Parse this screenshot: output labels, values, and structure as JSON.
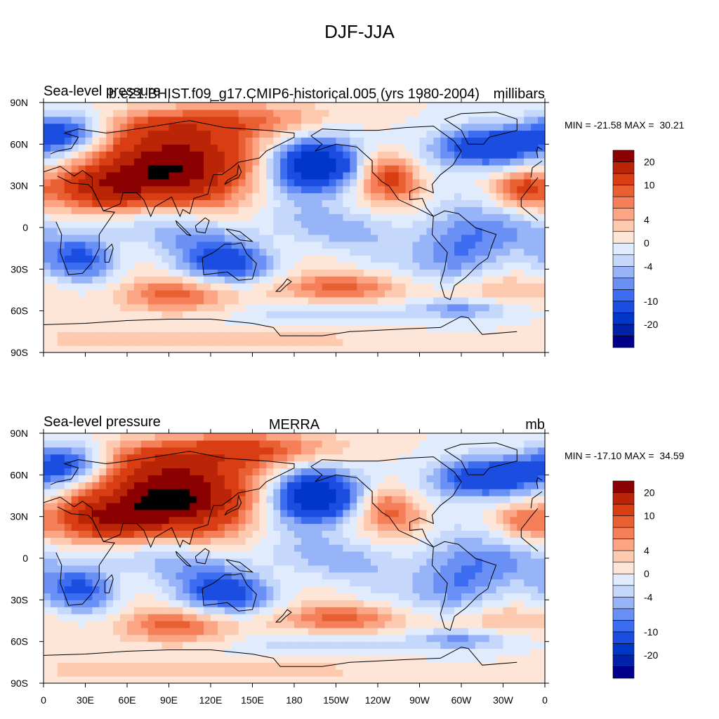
{
  "figure": {
    "title": "DJF-JJA"
  },
  "panels": [
    {
      "left_title": "Sea-level pressure",
      "center_title": "b.e21.BHIST.f09_g17.CMIP6-historical.005 (yrs 1980-2004)",
      "right_title": "millibars",
      "minmax": "MIN = -21.58 MAX =  30.21",
      "min": -21.58,
      "max": 30.21,
      "variant": 0
    },
    {
      "left_title": "Sea-level pressure",
      "center_title": "MERRA",
      "right_title": "mb",
      "minmax": "MIN = -17.10 MAX =  34.59",
      "min": -17.1,
      "max": 34.59,
      "variant": 1
    }
  ],
  "axes": {
    "x_ticks": [
      "0",
      "30E",
      "60E",
      "90E",
      "120E",
      "150E",
      "180",
      "150W",
      "120W",
      "90W",
      "60W",
      "30W",
      "0"
    ],
    "y_ticks": [
      "90N",
      "60N",
      "30N",
      "0",
      "30S",
      "60S",
      "90S"
    ]
  },
  "colorbar": {
    "levels": [
      -25,
      -20,
      -15,
      -10,
      -8,
      -6,
      -4,
      -2,
      0,
      2,
      4,
      6,
      8,
      10,
      15,
      20,
      25
    ],
    "colors": [
      "#00008b",
      "#0022a8",
      "#0037c8",
      "#1a4de0",
      "#3c6cf0",
      "#6a90f5",
      "#98b4f8",
      "#c5d8fb",
      "#e0ecfd",
      "#fde6d8",
      "#fdcab0",
      "#fba585",
      "#f57f58",
      "#e85f32",
      "#d93d13",
      "#ba2407",
      "#8b0000"
    ],
    "labels": [
      {
        "level": 20,
        "text": "20"
      },
      {
        "level": 10,
        "text": "10"
      },
      {
        "level": 4,
        "text": "4"
      },
      {
        "level": 0,
        "text": "0"
      },
      {
        "level": -4,
        "text": "-4"
      },
      {
        "level": -10,
        "text": "-10"
      },
      {
        "level": -20,
        "text": "-20"
      }
    ]
  }
}
